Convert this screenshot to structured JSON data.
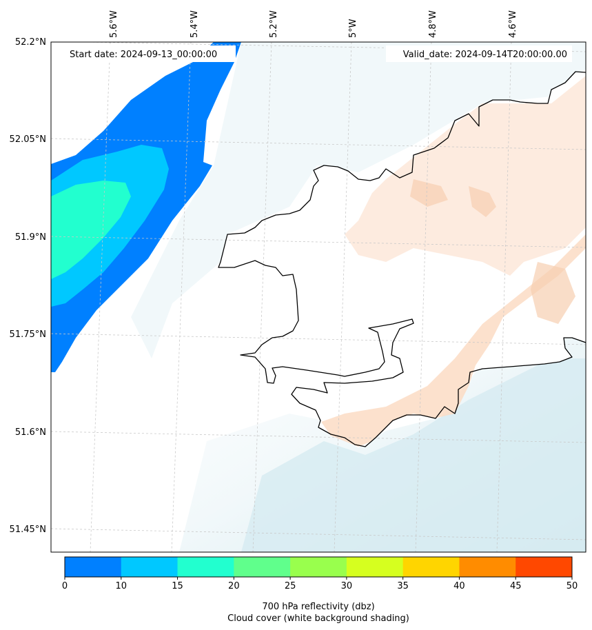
{
  "header": {
    "start_date": "Start date: 2024-09-13_00:00:00",
    "valid_date": "Valid_date: 2024-09-14T20:00:00.00"
  },
  "axes": {
    "lon_ticks": [
      "5.6°W",
      "5.4°W",
      "5.2°W",
      "5°W",
      "4.8°W",
      "4.6°W"
    ],
    "lat_ticks": [
      "52.2°N",
      "52.05°N",
      "51.9°N",
      "51.75°N",
      "51.6°N",
      "51.45°N"
    ]
  },
  "colorbar": {
    "levels": [
      0,
      10,
      15,
      20,
      25,
      30,
      35,
      40,
      45,
      50
    ],
    "colors": [
      "#0080ff",
      "#00c8ff",
      "#22ffcf",
      "#60ff8c",
      "#99ff4d",
      "#d6ff1f",
      "#ffd500",
      "#ff8c00",
      "#ff4800"
    ],
    "label_line1": "700 hPa reflectivity (dbz)",
    "label_line2": "Cloud cover (white background shading)"
  },
  "shading": {
    "sea_cloud": "#d5eaf0",
    "land_cloud": "#fbe3d0",
    "land_cloud_dark": "#f6cfb0",
    "coastline": "#000000",
    "grid": "#c8c8c8"
  }
}
